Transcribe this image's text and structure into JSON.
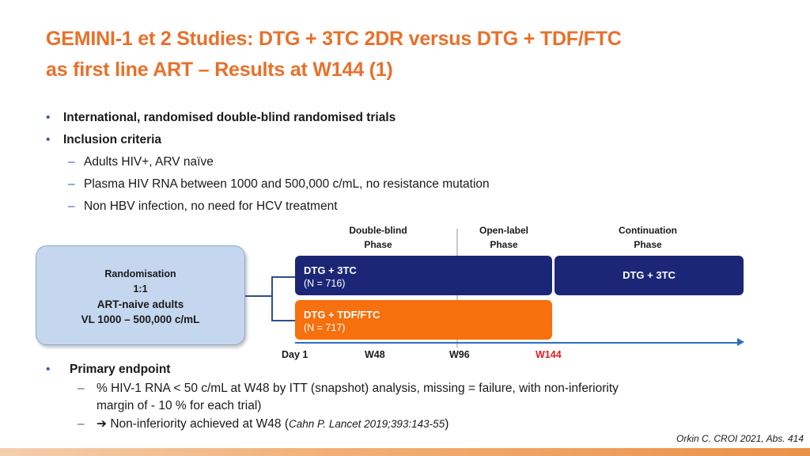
{
  "title": {
    "line1": "GEMINI-1 et 2 Studies: DTG + 3TC 2DR versus DTG + TDF/FTC",
    "line2": "as first line ART – Results at W144 (1)"
  },
  "bullets": {
    "b1": "International, randomised double-blind randomised trials",
    "b2": "Inclusion criteria",
    "sub1": "Adults HIV+, ARV naïve",
    "sub2": "Plasma HIV RNA between 1000 and 500,000 c/mL, no resistance mutation",
    "sub3": "Non HBV infection, no need for HCV treatment",
    "bullet_glyph": "•",
    "dash_glyph": "–"
  },
  "phases": {
    "p1_l1": "Double-blind",
    "p1_l2": "Phase",
    "p2_l1": "Open-label",
    "p2_l2": "Phase",
    "p3_l1": "Continuation",
    "p3_l2": "Phase"
  },
  "randomisation": {
    "l1": "Randomisation",
    "l2": "1:1",
    "l3": "ART-naive adults",
    "l4": "VL 1000 – 500,000 c/mL"
  },
  "arms": {
    "arm1_name": "DTG + 3TC",
    "arm1_n": "(N = 716)",
    "arm1_cont": "DTG + 3TC",
    "arm2_name": "DTG + TDF/FTC",
    "arm2_n": "(N = 717)"
  },
  "timeline": {
    "t1": "Day 1",
    "t2": "W48",
    "t3": "W96",
    "t4": "W144",
    "highlight_color": "#e01b1b"
  },
  "endpoint": {
    "heading": "Primary endpoint",
    "line1": "% HIV-1 RNA < 50 c/mL at W48 by ITT (snapshot) analysis, missing = failure, with non-inferiority",
    "line2": "margin of - 10 % for each trial)",
    "arrow": "➔",
    "line3_main": "Non-inferiority achieved at W48 (",
    "line3_cite": "Cahn P. Lancet 2019;393:143-55",
    "line3_end": ")",
    "dash_glyph": "–"
  },
  "reference": "Orkin C. CROI 2021, Abs. 414",
  "colors": {
    "title": "#e8702a",
    "arm_blue": "#1c2676",
    "arm_orange": "#f7700e",
    "rand_box": "#c5d6ef",
    "axis": "#2a6fc2"
  }
}
